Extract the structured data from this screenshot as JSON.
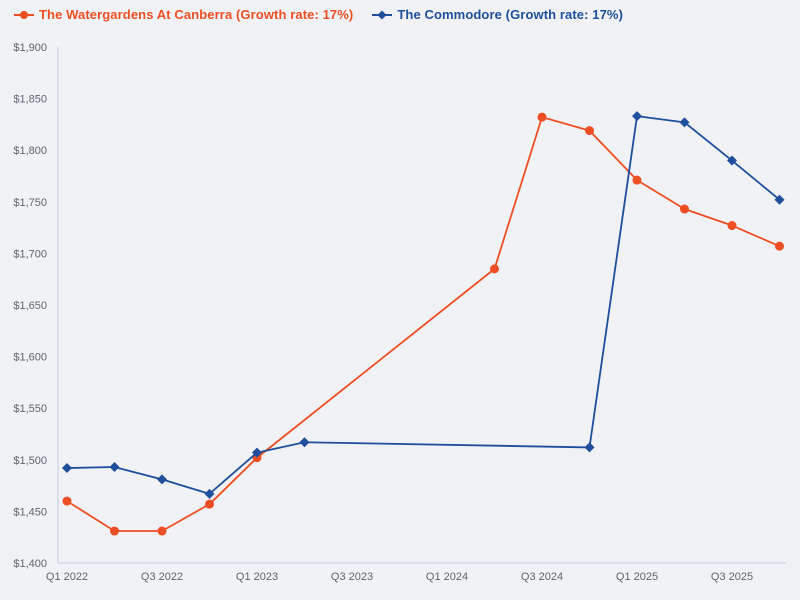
{
  "page": {
    "background_color": "#f0f2f5",
    "axis_line_color": "#c6cde0",
    "tick_label_color": "#60646c"
  },
  "legend": {
    "items": [
      {
        "label": "The Watergardens At Canberra (Growth rate: 17%)",
        "color": "#ee4e23",
        "marker": "circle"
      },
      {
        "label": "The Commodore (Growth rate: 17%)",
        "color": "#1f4e9c",
        "marker": "diamond"
      }
    ]
  },
  "chart_data": {
    "type": "line",
    "title": "",
    "xlabel": "",
    "ylabel": "",
    "x": [
      "Q1 2022",
      "Q2 2022",
      "Q3 2022",
      "Q4 2022",
      "Q1 2023",
      "Q2 2023",
      "Q3 2023",
      "Q4 2023",
      "Q1 2024",
      "Q2 2024",
      "Q3 2024",
      "Q4 2024",
      "Q1 2025",
      "Q2 2025",
      "Q3 2025",
      "Q4 2025"
    ],
    "x_tick_labels": [
      "Q1 2022",
      "Q3 2022",
      "Q1 2023",
      "Q3 2023",
      "Q1 2024",
      "Q3 2024",
      "Q1 2025",
      "Q3 2025"
    ],
    "x_tick_indices": [
      0,
      2,
      4,
      6,
      8,
      10,
      12,
      14
    ],
    "ylim": [
      1400,
      1900
    ],
    "y_tick_step": 50,
    "y_tick_labels": [
      "$1,400",
      "$1,450",
      "$1,500",
      "$1,550",
      "$1,600",
      "$1,650",
      "$1,700",
      "$1,750",
      "$1,800",
      "$1,850",
      "$1,900"
    ],
    "grid": false,
    "legend_position": "top-left",
    "series": [
      {
        "name": "The Watergardens At Canberra (Growth rate: 17%)",
        "color": "#ee4e23",
        "marker": "circle",
        "values": [
          1460,
          1431,
          1431,
          1457,
          1502,
          null,
          null,
          null,
          null,
          1685,
          1832,
          1819,
          1771,
          1743,
          1727,
          1707
        ]
      },
      {
        "name": "The Commodore (Growth rate: 17%)",
        "color": "#1f4e9c",
        "marker": "diamond",
        "values": [
          1492,
          1493,
          1481,
          1467,
          1507,
          1517,
          null,
          null,
          null,
          null,
          null,
          1512,
          1833,
          1827,
          1790,
          1752
        ]
      }
    ]
  }
}
